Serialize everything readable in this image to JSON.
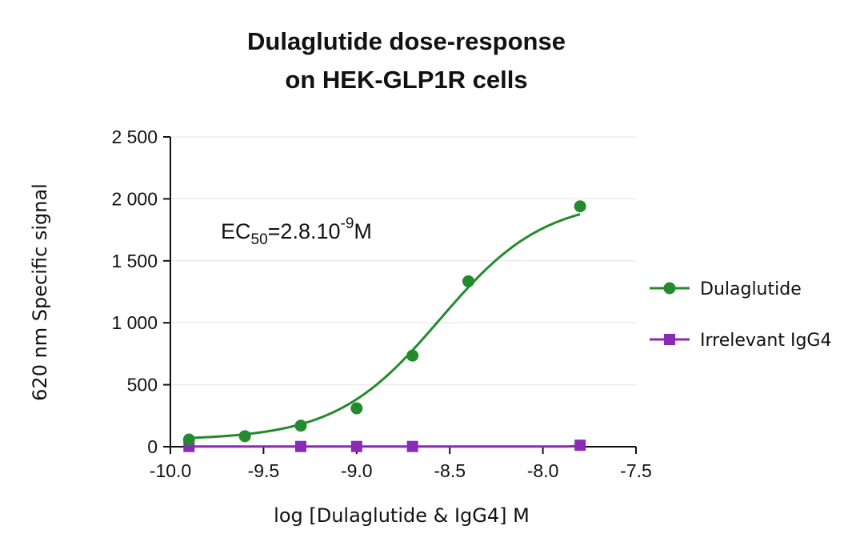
{
  "chart_data": {
    "type": "line",
    "title": [
      "Dulaglutide dose-response",
      "on HEK-GLP1R cells"
    ],
    "xlabel": "log [Dulaglutide & IgG4] M",
    "ylabel": "620 nm Specific signal",
    "xlim": [
      -10.0,
      -7.5
    ],
    "ylim": [
      0,
      2500
    ],
    "xticks": [
      -10.0,
      -9.5,
      -9.0,
      -8.5,
      -8.0,
      -7.5
    ],
    "xtick_labels": [
      "-10.0",
      "-9.5",
      "-9.0",
      "-8.5",
      "-8.0",
      "-7.5"
    ],
    "yticks": [
      0,
      500,
      1000,
      1500,
      2000,
      2500
    ],
    "ytick_labels": [
      "0",
      "500",
      "1 000",
      "1 500",
      "2 000",
      "2 500"
    ],
    "grid": "horizontal",
    "legend_position": "right",
    "annotation": {
      "prefix": "EC",
      "subscript": "50",
      "mid": "=2.8.10",
      "superscript": "-9",
      "suffix": "M"
    },
    "series": [
      {
        "name": "Dulaglutide",
        "color": "#238b2e",
        "marker": "circle",
        "x": [
          -9.9,
          -9.6,
          -9.3,
          -9.0,
          -8.7,
          -8.4,
          -7.8
        ],
        "y": [
          58,
          85,
          170,
          310,
          735,
          1335,
          1940
        ],
        "fit": {
          "bottom": 55,
          "top": 2000,
          "log_ec50": -8.553,
          "hill": 1.55
        }
      },
      {
        "name": "Irrelevant IgG4",
        "color": "#8a2bb8",
        "marker": "square",
        "x": [
          -9.9,
          -9.3,
          -9.0,
          -8.7,
          -7.8
        ],
        "y": [
          2,
          2,
          2,
          2,
          12
        ]
      }
    ]
  }
}
